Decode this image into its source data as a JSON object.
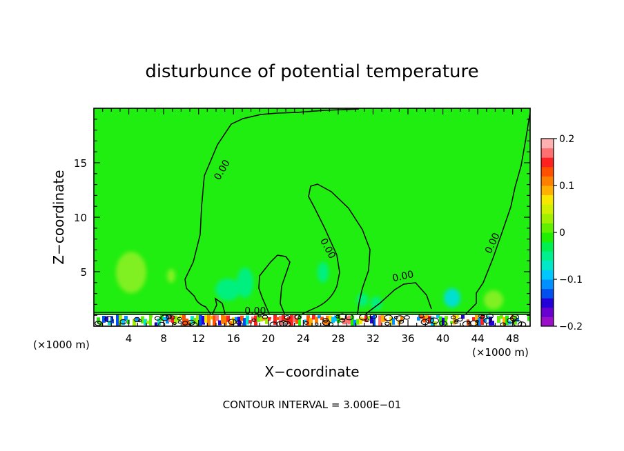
{
  "chart_data": {
    "type": "contour",
    "title": "disturbunce of potential temperature",
    "xlabel": "X−coordinate",
    "ylabel": "Z−coordinate",
    "x_unit_left": "(×1000 m)",
    "x_unit_right": "(×1000 m)",
    "xlim": [
      0,
      50
    ],
    "ylim": [
      0,
      20
    ],
    "x_ticks": [
      4,
      8,
      12,
      16,
      20,
      24,
      28,
      32,
      36,
      40,
      44,
      48
    ],
    "x_tick_labels": [
      "4",
      "8",
      "12",
      "16",
      "20",
      "24",
      "28",
      "32",
      "36",
      "40",
      "44",
      "48"
    ],
    "y_ticks": [
      5,
      10,
      15
    ],
    "y_tick_labels": [
      "5",
      "10",
      "15"
    ],
    "colorbar": {
      "min": -0.2,
      "max": 0.2,
      "tick_values": [
        0.2,
        0.1,
        0,
        -0.1,
        -0.2
      ],
      "tick_labels": [
        "0.2",
        "0.1",
        "0",
        "−0.1",
        "−0.2"
      ],
      "colors": [
        "#9a10c8",
        "#6a00d0",
        "#2400d8",
        "#0050f0",
        "#0090ff",
        "#00c8ff",
        "#00e8c8",
        "#00f090",
        "#00f050",
        "#20f000",
        "#60f000",
        "#a0f000",
        "#d0f000",
        "#f8e800",
        "#ffb000",
        "#ff8000",
        "#ff5000",
        "#ff2020",
        "#ff7070",
        "#ffb0b0"
      ]
    },
    "contour_labels": [
      {
        "text": "0.00",
        "x": 15.0,
        "z": 14.2
      },
      {
        "text": "0.00",
        "x": 26.5,
        "z": 7.0
      },
      {
        "text": "0.00",
        "x": 35.5,
        "z": 4.3
      },
      {
        "text": "0.00",
        "x": 46.0,
        "z": 7.5
      },
      {
        "text": "0.00",
        "x": 18.5,
        "z": 1.1
      }
    ],
    "footer": "CONTOUR INTERVAL = 3.000E−01"
  }
}
